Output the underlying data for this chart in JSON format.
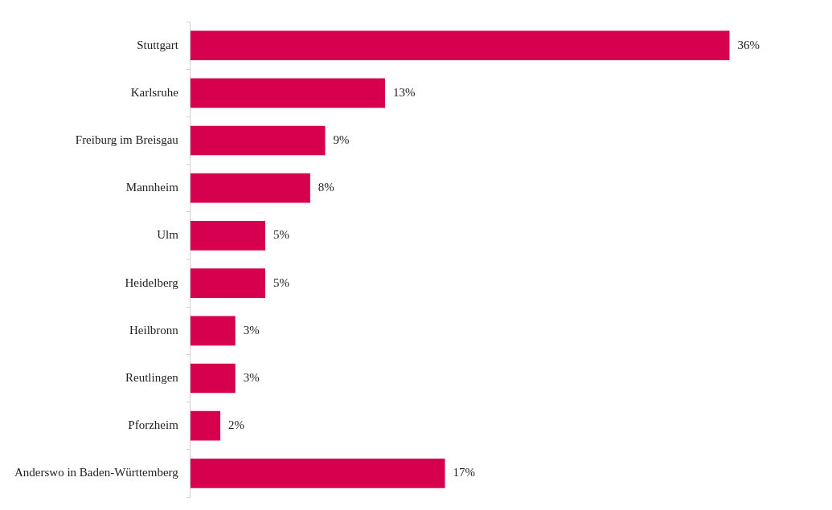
{
  "chart_data": {
    "type": "bar",
    "orientation": "horizontal",
    "categories": [
      "Stuttgart",
      "Karlsruhe",
      "Freiburg im Breisgau",
      "Mannheim",
      "Ulm",
      "Heidelberg",
      "Heilbronn",
      "Reutlingen",
      "Pforzheim",
      "Anderswo in Baden-Württemberg"
    ],
    "values": [
      36,
      13,
      9,
      8,
      5,
      5,
      3,
      3,
      2,
      17
    ],
    "value_labels": [
      "36%",
      "13%",
      "9%",
      "8%",
      "5%",
      "5%",
      "3%",
      "3%",
      "2%",
      "17%"
    ],
    "color": "#d6004f",
    "grid": false,
    "legend": false
  }
}
